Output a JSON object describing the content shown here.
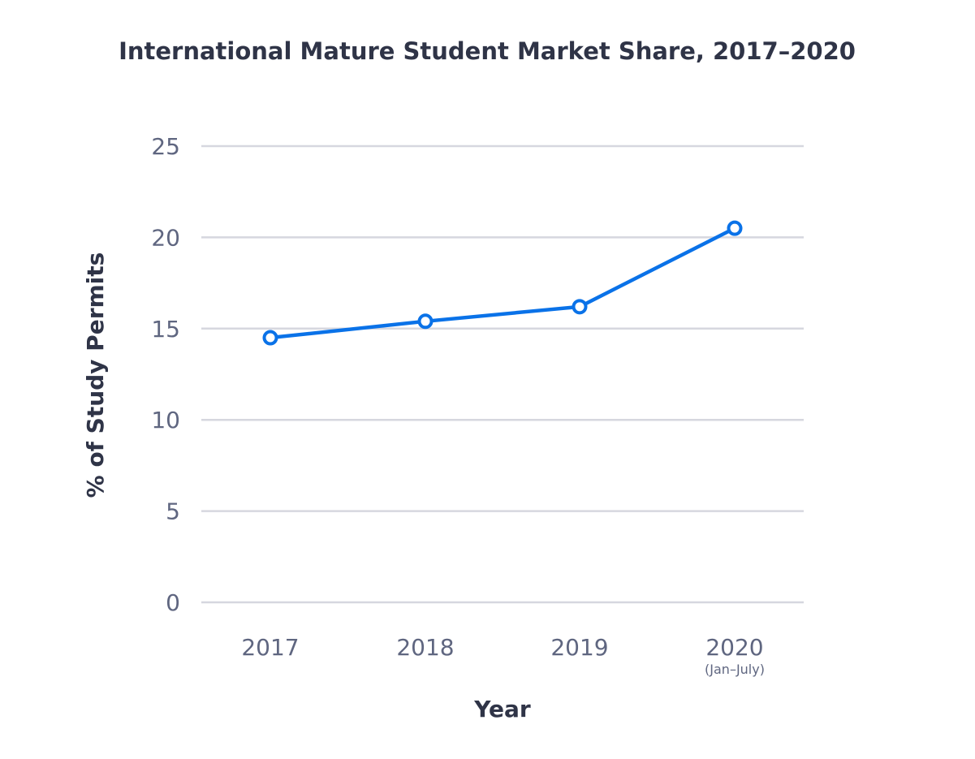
{
  "chart_data": {
    "type": "line",
    "title": "International Mature Student Market Share, 2017–2020",
    "xlabel": "Year",
    "ylabel": "% of Study Permits",
    "categories": [
      "2017",
      "2018",
      "2019",
      "2020"
    ],
    "category_notes": [
      "",
      "",
      "",
      "(Jan–July)"
    ],
    "series": [
      {
        "values": [
          14.5,
          15.4,
          16.2,
          20.5
        ],
        "color": "#0a72e8"
      }
    ],
    "ylim": [
      0,
      25
    ],
    "yticks": [
      0,
      5,
      10,
      15,
      20,
      25
    ],
    "grid": true,
    "legend": "none"
  }
}
